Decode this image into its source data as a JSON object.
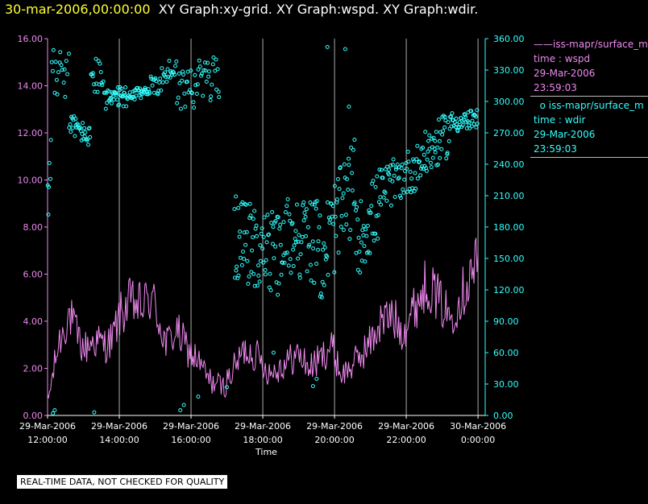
{
  "header": {
    "date_label": "30-mar-2006,00:00:00",
    "graphs_label": "XY Graph:xy-grid.  XY Graph:wspd.  XY Graph:wdir."
  },
  "legend": {
    "series": [
      {
        "name_line": "iss-mapr/surface_m",
        "marker": "line",
        "field_line": "time : wspd",
        "date_line": "29-Mar-2006",
        "time_line": "23:59:03"
      },
      {
        "name_line": "iss-mapr/surface_m",
        "marker": "circle",
        "field_line": "time : wdir",
        "date_line": "29-Mar-2006",
        "time_line": "23:59:03"
      }
    ]
  },
  "footer": {
    "quality_note": "REAL-TIME DATA, NOT CHECKED FOR QUALITY"
  },
  "colors": {
    "wspd": "#ee88ee",
    "wdir": "#33ffff",
    "grid": "#aaaaaa",
    "axis_text": "#ffffff"
  },
  "chart_data": {
    "type": "line",
    "xlabel": "Time",
    "x_ticks": [
      {
        "date": "29-Mar-2006",
        "time": "12:00:00",
        "hour": 12
      },
      {
        "date": "29-Mar-2006",
        "time": "14:00:00",
        "hour": 14
      },
      {
        "date": "29-Mar-2006",
        "time": "16:00:00",
        "hour": 16
      },
      {
        "date": "29-Mar-2006",
        "time": "18:00:00",
        "hour": 18
      },
      {
        "date": "29-Mar-2006",
        "time": "20:00:00",
        "hour": 20
      },
      {
        "date": "29-Mar-2006",
        "time": "22:00:00",
        "hour": 22
      },
      {
        "date": "30-Mar-2006",
        "time": "0:00:00",
        "hour": 24
      }
    ],
    "xlim_hours": [
      12,
      24.2
    ],
    "left_axis": {
      "label": "wspd",
      "ylim": [
        0,
        16
      ],
      "ticks": [
        "0.00",
        "2.00",
        "4.00",
        "6.00",
        "8.00",
        "10.00",
        "12.00",
        "14.00",
        "16.00"
      ]
    },
    "right_axis": {
      "label": "wdir",
      "ylim": [
        0,
        360
      ],
      "ticks": [
        "0.00",
        "30.00",
        "60.00",
        "90.00",
        "120.00",
        "150.00",
        "180.00",
        "210.00",
        "240.00",
        "270.00",
        "300.00",
        "330.00",
        "360.00"
      ]
    },
    "series": [
      {
        "name": "wspd",
        "axis": "left",
        "style": "line",
        "knots_hours": [
          12.0,
          12.3,
          12.6,
          12.8,
          13.0,
          13.3,
          13.6,
          13.8,
          14.0,
          14.3,
          14.6,
          14.9,
          15.0,
          15.3,
          15.6,
          15.9,
          16.2,
          16.5,
          16.9,
          17.2,
          17.5,
          17.8,
          18.2,
          18.6,
          19.0,
          19.3,
          19.6,
          19.9,
          20.2,
          20.6,
          21.0,
          21.3,
          21.6,
          21.9,
          22.2,
          22.6,
          22.9,
          23.2,
          23.5,
          23.8,
          24.0
        ],
        "knots_values": [
          0.5,
          3.0,
          4.3,
          3.5,
          2.8,
          3.2,
          3.0,
          3.2,
          4.2,
          4.8,
          4.6,
          5.0,
          4.6,
          3.0,
          3.6,
          2.8,
          2.3,
          1.5,
          1.2,
          2.0,
          2.8,
          2.6,
          1.8,
          2.2,
          2.6,
          2.0,
          2.4,
          3.0,
          1.7,
          2.3,
          3.1,
          4.0,
          4.2,
          3.6,
          4.5,
          5.7,
          4.9,
          4.2,
          5.0,
          6.0,
          6.6
        ],
        "noise": 0.9,
        "samples": 430
      },
      {
        "name": "wdir",
        "axis": "right",
        "style": "scatter",
        "segments": [
          {
            "h0": 12.0,
            "h1": 12.1,
            "v0": 200,
            "v1": 255,
            "spread": 25,
            "n": 6
          },
          {
            "h0": 12.1,
            "h1": 12.6,
            "v0": 335,
            "v1": 325,
            "spread": 25,
            "n": 18
          },
          {
            "h0": 12.6,
            "h1": 13.2,
            "v0": 280,
            "v1": 265,
            "spread": 10,
            "n": 32
          },
          {
            "h0": 13.2,
            "h1": 13.7,
            "v0": 330,
            "v1": 308,
            "spread": 20,
            "n": 22
          },
          {
            "h0": 13.7,
            "h1": 14.2,
            "v0": 302,
            "v1": 305,
            "spread": 10,
            "n": 32
          },
          {
            "h0": 14.2,
            "h1": 14.8,
            "v0": 302,
            "v1": 312,
            "spread": 6,
            "n": 34
          },
          {
            "h0": 14.8,
            "h1": 15.6,
            "v0": 310,
            "v1": 335,
            "spread": 12,
            "n": 36
          },
          {
            "h0": 15.6,
            "h1": 16.8,
            "v0": 310,
            "v1": 325,
            "spread": 22,
            "n": 48
          },
          {
            "h0": 17.2,
            "h1": 18.6,
            "v0": 170,
            "v1": 150,
            "spread": 40,
            "n": 80
          },
          {
            "h0": 18.6,
            "h1": 19.6,
            "v0": 175,
            "v1": 165,
            "spread": 40,
            "n": 55
          },
          {
            "h0": 19.6,
            "h1": 20.6,
            "v0": 150,
            "v1": 225,
            "spread": 45,
            "n": 55
          },
          {
            "h0": 20.6,
            "h1": 21.3,
            "v0": 165,
            "v1": 205,
            "spread": 35,
            "n": 40
          },
          {
            "h0": 21.3,
            "h1": 22.4,
            "v0": 215,
            "v1": 240,
            "spread": 22,
            "n": 55
          },
          {
            "h0": 22.4,
            "h1": 23.2,
            "v0": 245,
            "v1": 270,
            "spread": 22,
            "n": 45
          },
          {
            "h0": 23.2,
            "h1": 24.0,
            "v0": 280,
            "v1": 282,
            "spread": 10,
            "n": 45
          }
        ],
        "outliers": [
          [
            12.15,
            2
          ],
          [
            12.2,
            5
          ],
          [
            13.3,
            3
          ],
          [
            15.7,
            5
          ],
          [
            15.8,
            10
          ],
          [
            16.2,
            18
          ],
          [
            17.0,
            27
          ],
          [
            18.3,
            60
          ],
          [
            19.4,
            28
          ],
          [
            19.5,
            35
          ],
          [
            19.8,
            352
          ],
          [
            20.3,
            350
          ],
          [
            20.4,
            295
          ]
        ]
      }
    ]
  }
}
